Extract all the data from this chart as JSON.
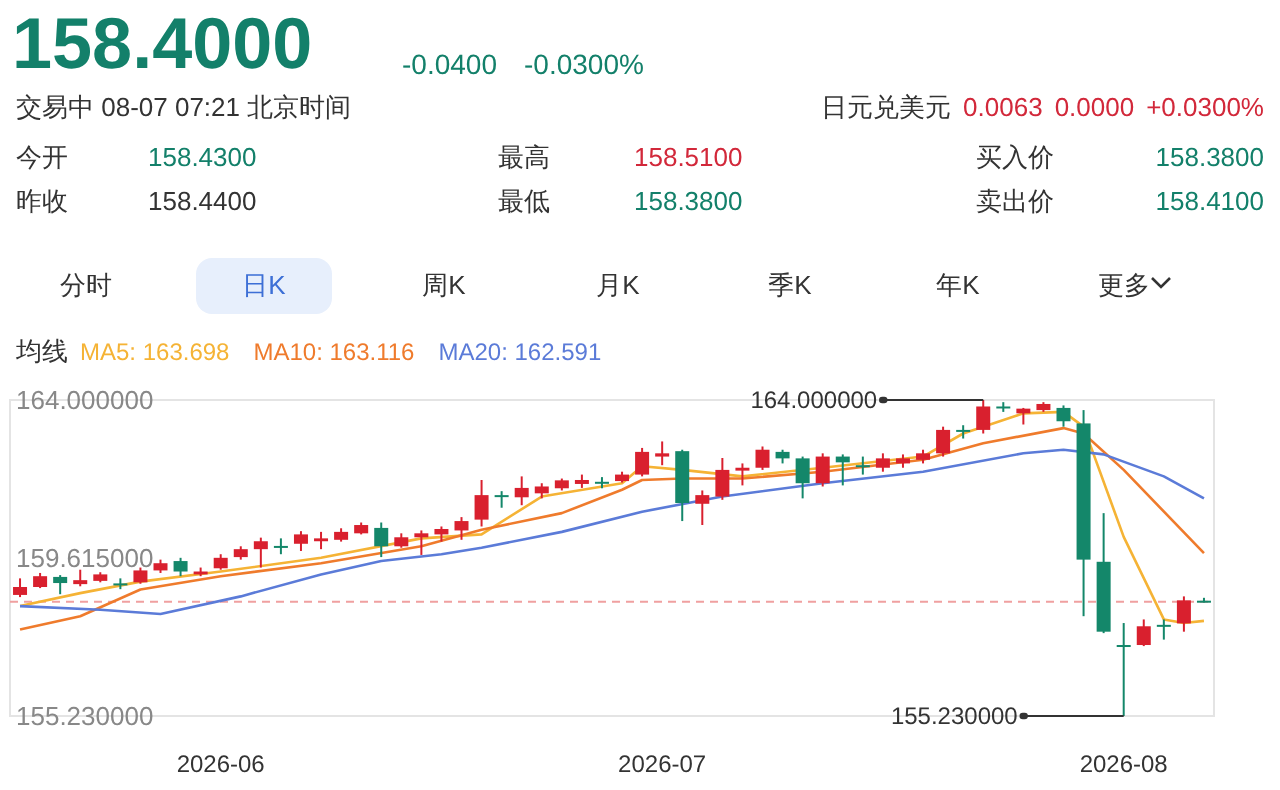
{
  "chart_data": {
    "type": "candlestick",
    "title": "158.4000",
    "annotations": [
      "-0.0400",
      "-0.0300%",
      "交易中 08-07 07:21 北京时间",
      "日元兑美元",
      "0.0063",
      "0.0000",
      "+0.0300%",
      "今开",
      "158.4300",
      "最高",
      "158.5100",
      "买入价",
      "158.3800",
      "昨收",
      "158.4400",
      "最低",
      "158.3800",
      "卖出价",
      "158.4100",
      "分时",
      "日K",
      "周K",
      "月K",
      "季K",
      "年K",
      "更多",
      "均线",
      "164.000000",
      "155.230000"
    ],
    "categories": [
      null,
      null,
      null,
      null,
      null,
      null,
      null,
      null,
      null,
      null,
      "2026-06",
      null,
      null,
      null,
      null,
      null,
      null,
      null,
      null,
      null,
      null,
      null,
      null,
      null,
      null,
      null,
      null,
      null,
      null,
      null,
      null,
      null,
      "2026-07",
      null,
      null,
      null,
      null,
      null,
      null,
      null,
      null,
      null,
      null,
      null,
      null,
      null,
      null,
      null,
      null,
      null,
      null,
      null,
      null,
      null,
      null,
      "2026-08",
      null,
      null,
      null,
      null
    ],
    "ohlc": [
      [
        158.59,
        159.05,
        158.53,
        158.81
      ],
      [
        158.81,
        159.2,
        158.78,
        159.11
      ],
      [
        159.09,
        159.14,
        158.61,
        158.92
      ],
      [
        158.89,
        159.29,
        158.83,
        159.0
      ],
      [
        158.98,
        159.22,
        158.94,
        159.16
      ],
      [
        158.91,
        159.05,
        158.75,
        158.89
      ],
      [
        158.94,
        159.35,
        158.9,
        159.27
      ],
      [
        159.27,
        159.57,
        159.2,
        159.47
      ],
      [
        159.53,
        159.62,
        159.11,
        159.24
      ],
      [
        159.16,
        159.35,
        159.11,
        159.24
      ],
      [
        159.33,
        159.72,
        159.29,
        159.62
      ],
      [
        159.64,
        159.94,
        159.57,
        159.86
      ],
      [
        159.86,
        160.18,
        159.35,
        160.08
      ],
      [
        159.95,
        160.16,
        159.72,
        159.92
      ],
      [
        160.01,
        160.36,
        159.81,
        160.27
      ],
      [
        160.08,
        160.34,
        159.86,
        160.16
      ],
      [
        160.12,
        160.44,
        160.07,
        160.34
      ],
      [
        160.3,
        160.6,
        160.27,
        160.53
      ],
      [
        160.45,
        160.6,
        159.64,
        159.94
      ],
      [
        159.94,
        160.3,
        159.9,
        160.19
      ],
      [
        160.19,
        160.38,
        159.7,
        160.3
      ],
      [
        160.27,
        160.49,
        160.07,
        160.42
      ],
      [
        160.38,
        160.75,
        160.12,
        160.64
      ],
      [
        160.68,
        161.78,
        160.49,
        161.36
      ],
      [
        161.36,
        161.47,
        161.01,
        161.32
      ],
      [
        161.3,
        161.88,
        161.08,
        161.56
      ],
      [
        161.41,
        161.69,
        161.27,
        161.6
      ],
      [
        161.55,
        161.82,
        161.49,
        161.77
      ],
      [
        161.67,
        161.93,
        161.56,
        161.78
      ],
      [
        161.73,
        161.86,
        161.55,
        161.69
      ],
      [
        161.75,
        162.01,
        161.71,
        161.93
      ],
      [
        161.93,
        162.67,
        161.88,
        162.56
      ],
      [
        162.43,
        162.85,
        162.19,
        162.52
      ],
      [
        162.58,
        162.62,
        160.64,
        161.14
      ],
      [
        161.12,
        161.49,
        160.53,
        161.36
      ],
      [
        161.32,
        162.39,
        161.23,
        162.06
      ],
      [
        162.04,
        162.24,
        161.63,
        162.12
      ],
      [
        162.12,
        162.71,
        162.06,
        162.62
      ],
      [
        162.56,
        162.62,
        162.24,
        162.38
      ],
      [
        162.38,
        162.43,
        161.27,
        161.69
      ],
      [
        161.69,
        162.52,
        161.6,
        162.43
      ],
      [
        162.43,
        162.49,
        161.63,
        162.27
      ],
      [
        162.19,
        162.43,
        161.93,
        162.16
      ],
      [
        162.12,
        162.52,
        162.01,
        162.38
      ],
      [
        162.24,
        162.49,
        162.12,
        162.38
      ],
      [
        162.34,
        162.62,
        162.24,
        162.52
      ],
      [
        162.52,
        163.26,
        162.43,
        163.17
      ],
      [
        163.17,
        163.3,
        162.93,
        163.13
      ],
      [
        163.17,
        164.0,
        163.07,
        163.82
      ],
      [
        163.82,
        163.94,
        163.67,
        163.78
      ],
      [
        163.63,
        163.78,
        163.32,
        163.76
      ],
      [
        163.72,
        163.94,
        163.67,
        163.89
      ],
      [
        163.78,
        163.85,
        163.26,
        163.41
      ],
      [
        163.35,
        163.72,
        158.0,
        159.57
      ],
      [
        159.51,
        160.86,
        157.53,
        157.57
      ],
      [
        157.2,
        157.81,
        155.23,
        157.17
      ],
      [
        157.2,
        157.91,
        157.17,
        157.72
      ],
      [
        157.76,
        157.91,
        157.35,
        157.72
      ],
      [
        157.8,
        158.55,
        157.57,
        158.44
      ],
      [
        158.43,
        158.51,
        158.38,
        158.4
      ]
    ],
    "colors": [
      "#d9202e",
      "#d9202e",
      "#14876a",
      "#d9202e",
      "#d9202e",
      "#14876a",
      "#d9202e",
      "#d9202e",
      "#14876a",
      "#d9202e",
      "#d9202e",
      "#d9202e",
      "#d9202e",
      "#14876a",
      "#d9202e",
      "#d9202e",
      "#d9202e",
      "#d9202e",
      "#14876a",
      "#d9202e",
      "#d9202e",
      "#d9202e",
      "#d9202e",
      "#d9202e",
      "#14876a",
      "#d9202e",
      "#d9202e",
      "#d9202e",
      "#d9202e",
      "#14876a",
      "#d9202e",
      "#d9202e",
      "#d9202e",
      "#14876a",
      "#d9202e",
      "#d9202e",
      "#d9202e",
      "#d9202e",
      "#14876a",
      "#14876a",
      "#d9202e",
      "#14876a",
      "#14876a",
      "#d9202e",
      "#d9202e",
      "#d9202e",
      "#d9202e",
      "#14876a",
      "#d9202e",
      "#14876a",
      "#d9202e",
      "#d9202e",
      "#14876a",
      "#14876a",
      "#14876a",
      "#14876a",
      "#d9202e",
      "#14876a",
      "#d9202e",
      "#14876a"
    ],
    "series": [
      {
        "name": "MA5: 163.698",
        "type": "line",
        "color": "#f5b335",
        "values": [
          158.28,
          null,
          null,
          158.64,
          null,
          null,
          158.96,
          null,
          null,
          null,
          159.24,
          null,
          null,
          null,
          null,
          159.62,
          null,
          null,
          null,
          null,
          160.16,
          null,
          null,
          160.27,
          null,
          null,
          161.32,
          null,
          null,
          null,
          161.69,
          162.16,
          null,
          162.06,
          null,
          null,
          161.88,
          null,
          null,
          null,
          162.12,
          null,
          null,
          null,
          null,
          162.43,
          null,
          163.07,
          null,
          null,
          163.63,
          null,
          163.67,
          163.26,
          null,
          160.2,
          null,
          157.91,
          157.81,
          157.87
        ]
      },
      {
        "name": "MA10: 163.116",
        "type": "line",
        "color": "#ef7b2c",
        "values": [
          157.63,
          null,
          null,
          158.0,
          null,
          null,
          158.74,
          null,
          null,
          null,
          159.11,
          null,
          null,
          null,
          null,
          159.47,
          null,
          null,
          null,
          null,
          159.94,
          null,
          null,
          160.4,
          null,
          null,
          null,
          160.86,
          null,
          null,
          161.51,
          161.78,
          null,
          161.82,
          null,
          null,
          161.82,
          null,
          null,
          null,
          162.01,
          null,
          null,
          null,
          null,
          162.34,
          null,
          null,
          162.8,
          null,
          null,
          null,
          163.22,
          163.07,
          null,
          162.06,
          null,
          null,
          null,
          159.75
        ]
      },
      {
        "name": "MA20: 162.591",
        "type": "line",
        "color": "#5b7bd8",
        "values": [
          158.28,
          null,
          null,
          null,
          158.18,
          null,
          null,
          158.06,
          null,
          null,
          null,
          158.55,
          null,
          null,
          null,
          159.16,
          null,
          null,
          159.53,
          null,
          null,
          159.72,
          null,
          159.9,
          null,
          null,
          null,
          160.34,
          null,
          null,
          null,
          160.9,
          null,
          null,
          null,
          161.32,
          null,
          null,
          null,
          null,
          161.69,
          null,
          null,
          null,
          null,
          162.01,
          null,
          null,
          null,
          null,
          162.52,
          null,
          162.62,
          null,
          162.49,
          null,
          null,
          161.88,
          null,
          161.27
        ]
      }
    ],
    "ylim": [
      155.23,
      164.0
    ],
    "yticks": [
      {
        "value": 164.0,
        "label": "164.000000"
      },
      {
        "value": 159.615,
        "label": "159.615000"
      },
      {
        "value": 155.23,
        "label": "155.230000"
      }
    ],
    "ref_lines": [
      {
        "axis": "y",
        "value": 158.4,
        "color": "#f0a0a0",
        "line_style": "dashed"
      }
    ],
    "legend": "top left"
  }
}
